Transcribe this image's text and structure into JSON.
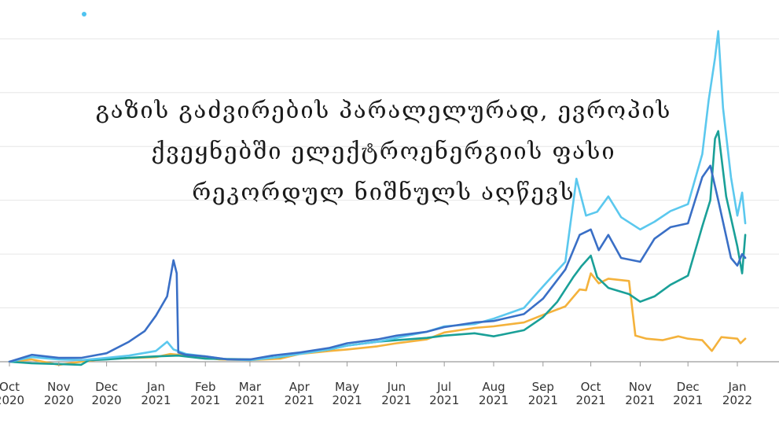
{
  "chart_data": {
    "type": "line",
    "title_lines": [
      "გაზის გაძვირების პარალელურად, ევროპის",
      "ქვეყნებში ელექტროენერგიის ფასი",
      "რეკორდულ ნიშნულს აღწევს"
    ],
    "x_ticks": [
      {
        "line1": "Oct",
        "line2": "2020",
        "date": "2020-10-01"
      },
      {
        "line1": "Nov",
        "line2": "2020",
        "date": "2020-11-01"
      },
      {
        "line1": "Dec",
        "line2": "2020",
        "date": "2020-12-01"
      },
      {
        "line1": "Jan",
        "line2": "2021",
        "date": "2021-01-01"
      },
      {
        "line1": "Feb",
        "line2": "2021",
        "date": "2021-02-01"
      },
      {
        "line1": "Mar",
        "line2": "2021",
        "date": "2021-03-01"
      },
      {
        "line1": "Apr",
        "line2": "2021",
        "date": "2021-04-01"
      },
      {
        "line1": "May",
        "line2": "2021",
        "date": "2021-05-01"
      },
      {
        "line1": "Jun",
        "line2": "2021",
        "date": "2021-06-01"
      },
      {
        "line1": "Jul",
        "line2": "2021",
        "date": "2021-07-01"
      },
      {
        "line1": "Aug",
        "line2": "2021",
        "date": "2021-08-01"
      },
      {
        "line1": "Sep",
        "line2": "2021",
        "date": "2021-09-01"
      },
      {
        "line1": "Oct",
        "line2": "2021",
        "date": "2021-10-01"
      },
      {
        "line1": "Nov",
        "line2": "2021",
        "date": "2021-11-01"
      },
      {
        "line1": "Dec",
        "line2": "2021",
        "date": "2021-12-01"
      },
      {
        "line1": "Jan",
        "line2": "2022",
        "date": "2022-01-01"
      }
    ],
    "xlim": [
      "2020-10-01",
      "2022-01-01"
    ],
    "ylim": [
      0,
      450
    ],
    "grid_y": [
      0,
      70,
      140,
      210,
      280,
      350,
      420
    ],
    "grid": true,
    "series": [
      {
        "color": "#f4b23c",
        "points": [
          [
            "2020-10-01",
            0
          ],
          [
            "2020-10-15",
            3
          ],
          [
            "2020-11-01",
            -4
          ],
          [
            "2020-11-15",
            0
          ],
          [
            "2020-12-01",
            4
          ],
          [
            "2020-12-20",
            5
          ],
          [
            "2021-01-01",
            6
          ],
          [
            "2021-01-10",
            10
          ],
          [
            "2021-01-25",
            7
          ],
          [
            "2021-02-10",
            3
          ],
          [
            "2021-03-01",
            2
          ],
          [
            "2021-03-20",
            4
          ],
          [
            "2021-04-01",
            10
          ],
          [
            "2021-04-20",
            14
          ],
          [
            "2021-05-01",
            16
          ],
          [
            "2021-05-20",
            20
          ],
          [
            "2021-06-01",
            24
          ],
          [
            "2021-06-20",
            29
          ],
          [
            "2021-07-01",
            38
          ],
          [
            "2021-07-20",
            44
          ],
          [
            "2021-08-01",
            46
          ],
          [
            "2021-08-20",
            51
          ],
          [
            "2021-09-01",
            61
          ],
          [
            "2021-09-15",
            72
          ],
          [
            "2021-09-24",
            94
          ],
          [
            "2021-09-28",
            93
          ],
          [
            "2021-10-01",
            115
          ],
          [
            "2021-10-06",
            102
          ],
          [
            "2021-10-12",
            108
          ],
          [
            "2021-10-25",
            105
          ],
          [
            "2021-10-29",
            34
          ],
          [
            "2021-11-05",
            30
          ],
          [
            "2021-11-15",
            28
          ],
          [
            "2021-11-25",
            33
          ],
          [
            "2021-12-01",
            30
          ],
          [
            "2021-12-10",
            28
          ],
          [
            "2021-12-16",
            14
          ],
          [
            "2021-12-22",
            32
          ],
          [
            "2022-01-01",
            30
          ],
          [
            "2022-01-03",
            24
          ],
          [
            "2022-01-06",
            30
          ]
        ]
      },
      {
        "color": "#1aa098",
        "points": [
          [
            "2020-10-01",
            0
          ],
          [
            "2020-10-15",
            -2
          ],
          [
            "2020-11-01",
            -3
          ],
          [
            "2020-11-15",
            -4
          ],
          [
            "2020-11-20",
            2
          ],
          [
            "2020-12-01",
            3
          ],
          [
            "2020-12-15",
            5
          ],
          [
            "2021-01-01",
            7
          ],
          [
            "2021-01-15",
            8
          ],
          [
            "2021-02-01",
            4
          ],
          [
            "2021-03-01",
            3
          ],
          [
            "2021-03-20",
            6
          ],
          [
            "2021-04-01",
            11
          ],
          [
            "2021-04-20",
            16
          ],
          [
            "2021-05-01",
            21
          ],
          [
            "2021-05-20",
            26
          ],
          [
            "2021-06-01",
            28
          ],
          [
            "2021-06-20",
            31
          ],
          [
            "2021-07-01",
            34
          ],
          [
            "2021-07-20",
            37
          ],
          [
            "2021-08-01",
            33
          ],
          [
            "2021-08-20",
            41
          ],
          [
            "2021-09-01",
            58
          ],
          [
            "2021-09-10",
            78
          ],
          [
            "2021-09-20",
            110
          ],
          [
            "2021-09-25",
            124
          ],
          [
            "2021-10-01",
            138
          ],
          [
            "2021-10-05",
            110
          ],
          [
            "2021-10-12",
            96
          ],
          [
            "2021-10-25",
            88
          ],
          [
            "2021-11-01",
            78
          ],
          [
            "2021-11-10",
            85
          ],
          [
            "2021-11-20",
            100
          ],
          [
            "2021-12-01",
            112
          ],
          [
            "2021-12-10",
            176
          ],
          [
            "2021-12-15",
            210
          ],
          [
            "2021-12-18",
            290
          ],
          [
            "2021-12-20",
            300
          ],
          [
            "2021-12-25",
            215
          ],
          [
            "2022-01-01",
            150
          ],
          [
            "2022-01-04",
            115
          ],
          [
            "2022-01-06",
            165
          ]
        ]
      },
      {
        "color": "#5bc8ee",
        "points": [
          [
            "2020-10-01",
            0
          ],
          [
            "2020-10-15",
            6
          ],
          [
            "2020-11-01",
            3
          ],
          [
            "2020-11-15",
            2
          ],
          [
            "2020-12-01",
            5
          ],
          [
            "2020-12-15",
            8
          ],
          [
            "2021-01-01",
            14
          ],
          [
            "2021-01-08",
            26
          ],
          [
            "2021-01-12",
            16
          ],
          [
            "2021-01-20",
            10
          ],
          [
            "2021-02-01",
            7
          ],
          [
            "2021-02-15",
            3
          ],
          [
            "2021-03-01",
            2
          ],
          [
            "2021-03-15",
            5
          ],
          [
            "2021-04-01",
            10
          ],
          [
            "2021-04-20",
            16
          ],
          [
            "2021-05-01",
            21
          ],
          [
            "2021-05-20",
            26
          ],
          [
            "2021-06-01",
            31
          ],
          [
            "2021-06-20",
            39
          ],
          [
            "2021-07-01",
            46
          ],
          [
            "2021-07-20",
            49
          ],
          [
            "2021-08-01",
            56
          ],
          [
            "2021-08-20",
            70
          ],
          [
            "2021-09-01",
            98
          ],
          [
            "2021-09-15",
            130
          ],
          [
            "2021-09-22",
            238
          ],
          [
            "2021-09-28",
            190
          ],
          [
            "2021-10-05",
            195
          ],
          [
            "2021-10-12",
            215
          ],
          [
            "2021-10-20",
            188
          ],
          [
            "2021-11-01",
            172
          ],
          [
            "2021-11-10",
            182
          ],
          [
            "2021-11-20",
            196
          ],
          [
            "2021-12-01",
            205
          ],
          [
            "2021-12-10",
            270
          ],
          [
            "2021-12-14",
            340
          ],
          [
            "2021-12-18",
            395
          ],
          [
            "2021-12-20",
            430
          ],
          [
            "2021-12-23",
            330
          ],
          [
            "2021-12-28",
            240
          ],
          [
            "2022-01-01",
            190
          ],
          [
            "2022-01-04",
            220
          ],
          [
            "2022-01-06",
            180
          ]
        ]
      },
      {
        "color": "#3a6fc6",
        "points": [
          [
            "2020-10-01",
            0
          ],
          [
            "2020-10-15",
            9
          ],
          [
            "2020-11-01",
            5
          ],
          [
            "2020-11-15",
            5
          ],
          [
            "2020-12-01",
            11
          ],
          [
            "2020-12-15",
            26
          ],
          [
            "2020-12-25",
            40
          ],
          [
            "2021-01-01",
            60
          ],
          [
            "2021-01-08",
            85
          ],
          [
            "2021-01-12",
            132
          ],
          [
            "2021-01-14",
            115
          ],
          [
            "2021-01-15",
            12
          ],
          [
            "2021-01-20",
            9
          ],
          [
            "2021-02-01",
            7
          ],
          [
            "2021-02-15",
            3
          ],
          [
            "2021-03-01",
            3
          ],
          [
            "2021-03-15",
            8
          ],
          [
            "2021-04-01",
            12
          ],
          [
            "2021-04-20",
            18
          ],
          [
            "2021-05-01",
            24
          ],
          [
            "2021-05-20",
            29
          ],
          [
            "2021-06-01",
            34
          ],
          [
            "2021-06-20",
            39
          ],
          [
            "2021-07-01",
            45
          ],
          [
            "2021-07-20",
            51
          ],
          [
            "2021-08-01",
            53
          ],
          [
            "2021-08-20",
            62
          ],
          [
            "2021-09-01",
            82
          ],
          [
            "2021-09-15",
            120
          ],
          [
            "2021-09-24",
            165
          ],
          [
            "2021-10-01",
            172
          ],
          [
            "2021-10-06",
            145
          ],
          [
            "2021-10-12",
            165
          ],
          [
            "2021-10-20",
            135
          ],
          [
            "2021-11-01",
            130
          ],
          [
            "2021-11-10",
            160
          ],
          [
            "2021-11-20",
            175
          ],
          [
            "2021-12-01",
            180
          ],
          [
            "2021-12-10",
            240
          ],
          [
            "2021-12-15",
            255
          ],
          [
            "2021-12-20",
            210
          ],
          [
            "2021-12-28",
            135
          ],
          [
            "2022-01-01",
            125
          ],
          [
            "2022-01-04",
            140
          ],
          [
            "2022-01-06",
            135
          ]
        ]
      }
    ],
    "legend_dot_color": "#4fc3f0"
  }
}
